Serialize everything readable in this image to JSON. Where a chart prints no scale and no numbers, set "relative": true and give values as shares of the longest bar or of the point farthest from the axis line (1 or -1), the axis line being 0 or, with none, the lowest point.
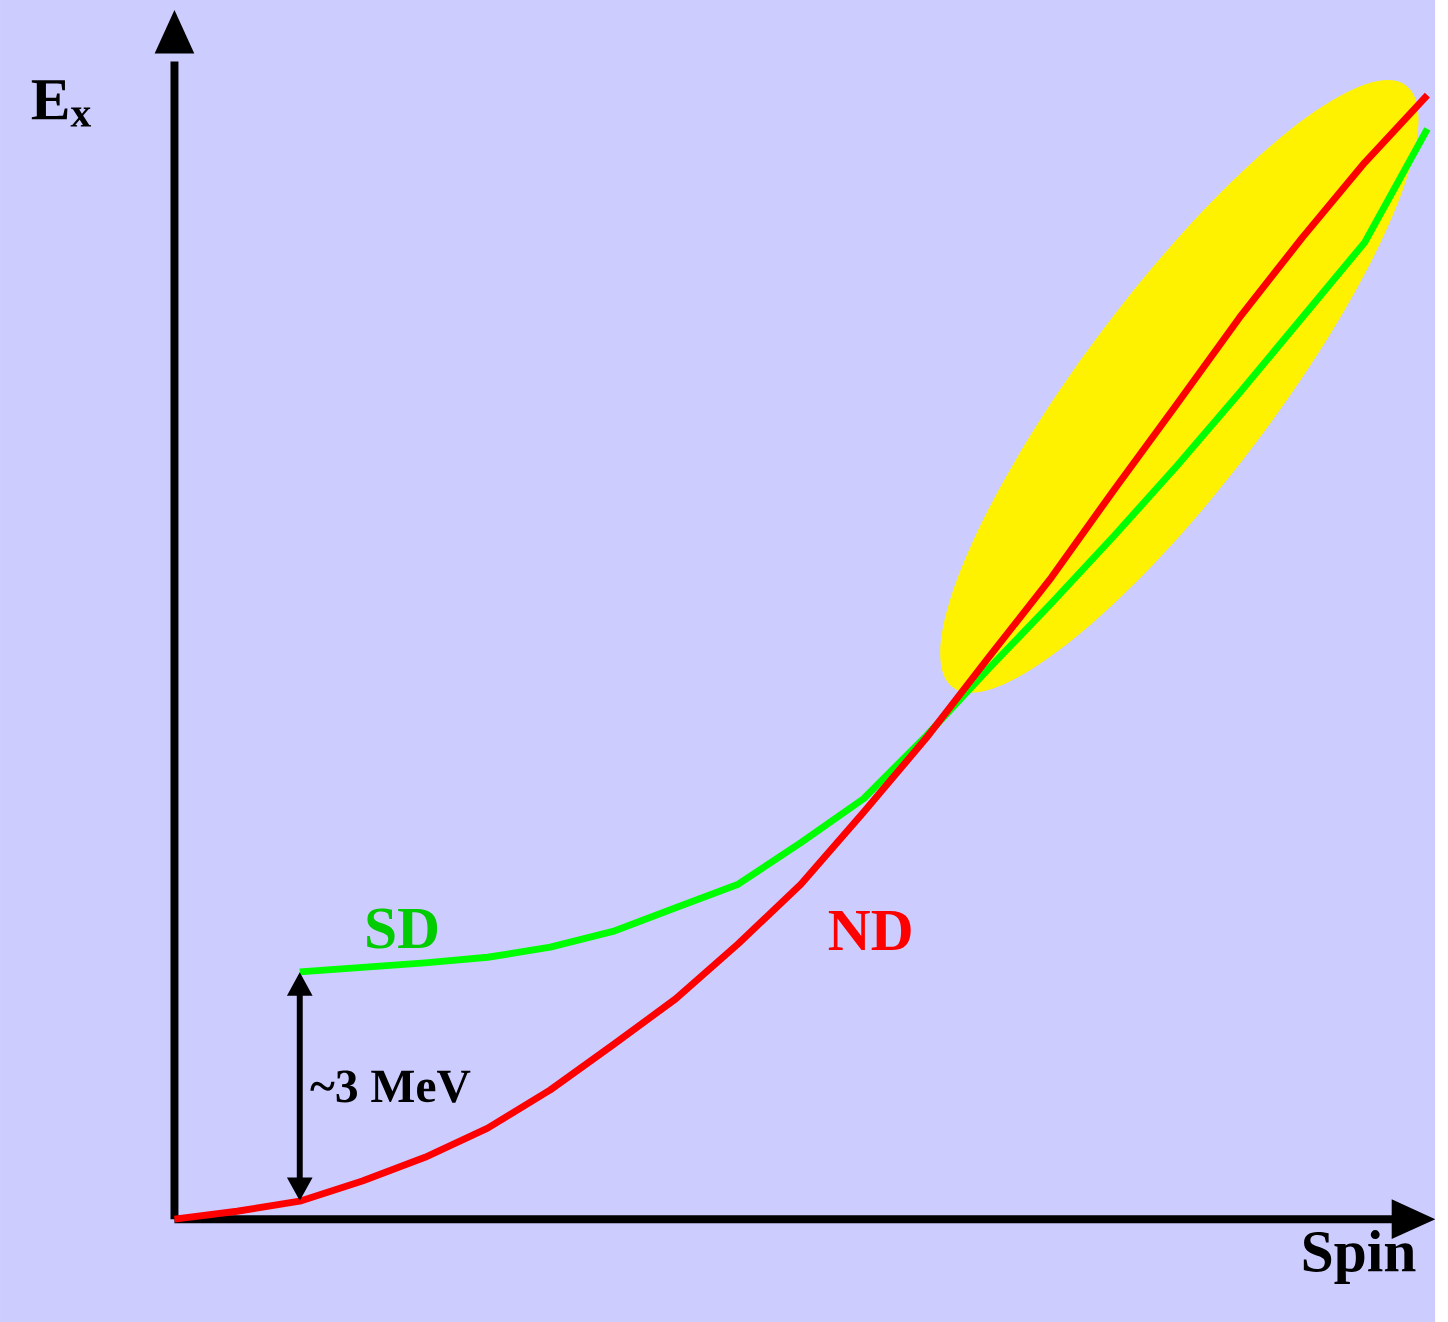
{
  "chart_data": {
    "type": "line",
    "relative": true,
    "xlabel": "Spin",
    "ylabel": "E$_{x}$",
    "legend": false,
    "annotations": [
      "~3 MeV"
    ],
    "categories": [
      null,
      null,
      null,
      null,
      null,
      null,
      null,
      null,
      null,
      null,
      null,
      null,
      null,
      null,
      null,
      null,
      null,
      null,
      null,
      null,
      null
    ],
    "series": [
      {
        "name": "SD",
        "color": "#00ff00",
        "values": [
          null,
          null,
          0.22,
          0.224,
          0.228,
          0.233,
          0.242,
          0.256,
          0.277,
          0.298,
          0.335,
          0.374,
          0.43,
          0.49,
          0.548,
          0.608,
          0.67,
          0.735,
          0.802,
          0.869,
          0.97
        ]
      },
      {
        "name": "ND",
        "color": "#ff0000",
        "values": [
          0,
          0.007,
          0.016,
          0.034,
          0.055,
          0.081,
          0.115,
          0.155,
          0.196,
          0.245,
          0.298,
          0.362,
          0.428,
          0.5,
          0.571,
          0.649,
          0.725,
          0.802,
          0.873,
          0.94,
          1
        ]
      }
    ]
  }
}
